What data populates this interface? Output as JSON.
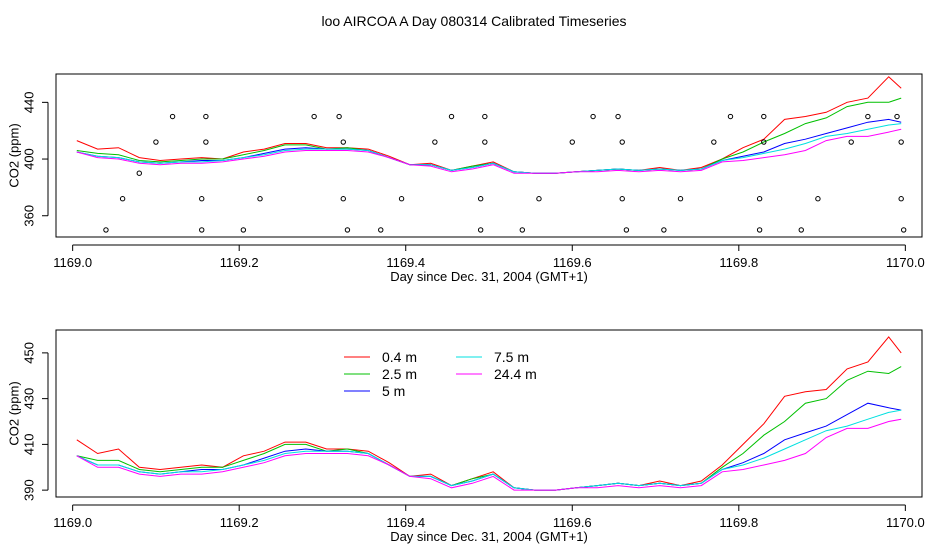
{
  "figure": {
    "title": "loo AIRCOA A  Day 080314  Calibrated Timeseries"
  },
  "colors": {
    "0.4 m": "#ff0000",
    "2.5 m": "#00c000",
    "5 m": "#0000ff",
    "7.5 m": "#00e0e0",
    "24.4 m": "#ff00ff",
    "markers": "#000000"
  },
  "chart_data": [
    {
      "type": "line",
      "xlabel": "Day since Dec. 31, 2004 (GMT+1)",
      "ylabel": "CO2 (ppm)",
      "xlim": [
        1168.98,
        1170.02
      ],
      "ylim": [
        345,
        460
      ],
      "xticks": [
        1169.0,
        1169.2,
        1169.4,
        1169.6,
        1169.8,
        1170.0
      ],
      "xtick_labels": [
        "1169.0",
        "1169.2",
        "1169.4",
        "1169.6",
        "1169.8",
        "1170.0"
      ],
      "yticks": [
        360,
        400,
        440
      ],
      "ytick_labels": [
        "360",
        "400",
        "440"
      ],
      "x": [
        1169.005,
        1169.03,
        1169.055,
        1169.08,
        1169.105,
        1169.13,
        1169.155,
        1169.18,
        1169.205,
        1169.23,
        1169.255,
        1169.28,
        1169.305,
        1169.33,
        1169.355,
        1169.38,
        1169.405,
        1169.43,
        1169.455,
        1169.48,
        1169.505,
        1169.53,
        1169.555,
        1169.58,
        1169.605,
        1169.63,
        1169.655,
        1169.68,
        1169.705,
        1169.73,
        1169.755,
        1169.78,
        1169.805,
        1169.83,
        1169.855,
        1169.88,
        1169.905,
        1169.93,
        1169.955,
        1169.98,
        1169.995
      ],
      "series": [
        {
          "name": "0.4 m",
          "values": [
            413,
            407,
            408,
            401,
            399,
            400,
            401,
            400,
            405,
            407,
            411,
            411,
            408,
            408,
            407,
            402,
            396,
            397,
            392,
            395,
            398,
            391,
            390,
            390,
            391,
            392,
            393,
            392,
            394,
            392,
            394,
            400,
            408,
            414,
            428,
            430,
            433,
            440,
            443,
            458,
            450
          ]
        },
        {
          "name": "2.5 m",
          "values": [
            406,
            404,
            403,
            399,
            398,
            399,
            400,
            400,
            403,
            406,
            410,
            410,
            407,
            408,
            406,
            401,
            396,
            396,
            392,
            395,
            397,
            391,
            390,
            390,
            391,
            392,
            393,
            392,
            393,
            392,
            393,
            400,
            405,
            412,
            418,
            425,
            429,
            437,
            440,
            440,
            443
          ]
        },
        {
          "name": "5 m",
          "values": [
            405,
            402,
            401,
            398,
            397,
            398,
            399,
            399,
            401,
            404,
            407,
            408,
            407,
            407,
            406,
            401,
            396,
            396,
            392,
            394,
            397,
            391,
            390,
            390,
            391,
            392,
            393,
            392,
            393,
            392,
            393,
            399,
            402,
            405,
            411,
            414,
            418,
            422,
            426,
            428,
            426
          ]
        },
        {
          "name": "7.5 m",
          "values": [
            405,
            402,
            401,
            398,
            397,
            398,
            398,
            399,
            401,
            403,
            406,
            407,
            407,
            407,
            406,
            401,
            396,
            396,
            392,
            394,
            397,
            391,
            390,
            390,
            391,
            392,
            393,
            392,
            393,
            392,
            393,
            399,
            401,
            404,
            407,
            411,
            416,
            418,
            421,
            424,
            425
          ]
        },
        {
          "name": "24.4 m",
          "values": [
            405,
            401,
            400,
            397,
            396,
            397,
            397,
            398,
            400,
            402,
            405,
            406,
            406,
            406,
            405,
            401,
            396,
            395,
            391,
            393,
            396,
            390,
            390,
            390,
            391,
            391,
            392,
            391,
            392,
            391,
            392,
            398,
            399,
            401,
            403,
            406,
            413,
            416,
            416,
            419,
            421
          ]
        },
        {
          "name": "",
          "mode": "markers",
          "x": [
            1169.04,
            1169.06,
            1169.08,
            1169.1,
            1169.12,
            1169.155,
            1169.155,
            1169.16,
            1169.16,
            1169.205,
            1169.225,
            1169.29,
            1169.32,
            1169.325,
            1169.325,
            1169.33,
            1169.37,
            1169.395,
            1169.435,
            1169.455,
            1169.49,
            1169.49,
            1169.495,
            1169.495,
            1169.54,
            1169.56,
            1169.6,
            1169.625,
            1169.655,
            1169.66,
            1169.66,
            1169.665,
            1169.71,
            1169.73,
            1169.77,
            1169.79,
            1169.825,
            1169.825,
            1169.83,
            1169.83,
            1169.875,
            1169.895,
            1169.935,
            1169.955,
            1169.99,
            1169.995,
            1169.995,
            1169.998
          ],
          "values": [
            350,
            372,
            390,
            412,
            430,
            350,
            372,
            412,
            430,
            350,
            372,
            430,
            430,
            412,
            372,
            350,
            350,
            372,
            412,
            430,
            350,
            372,
            412,
            430,
            350,
            372,
            412,
            430,
            430,
            412,
            372,
            350,
            350,
            372,
            412,
            430,
            350,
            372,
            412,
            430,
            350,
            372,
            412,
            430,
            430,
            412,
            372,
            350
          ]
        }
      ]
    },
    {
      "type": "line",
      "xlabel": "Day since Dec. 31, 2004 (GMT+1)",
      "ylabel": "CO2 (ppm)",
      "xlim": [
        1168.98,
        1170.02
      ],
      "ylim": [
        387,
        460
      ],
      "xticks": [
        1169.0,
        1169.2,
        1169.4,
        1169.6,
        1169.8,
        1170.0
      ],
      "xtick_labels": [
        "1169.0",
        "1169.2",
        "1169.4",
        "1169.6",
        "1169.8",
        "1170.0"
      ],
      "yticks": [
        390,
        410,
        430,
        450
      ],
      "ytick_labels": [
        "390",
        "410",
        "430",
        "450"
      ],
      "legend": {
        "placement": "top-left",
        "entries": [
          "0.4 m",
          "2.5 m",
          "5 m",
          "7.5 m",
          "24.4 m"
        ]
      },
      "x": [
        1169.005,
        1169.03,
        1169.055,
        1169.08,
        1169.105,
        1169.13,
        1169.155,
        1169.18,
        1169.205,
        1169.23,
        1169.255,
        1169.28,
        1169.305,
        1169.33,
        1169.355,
        1169.38,
        1169.405,
        1169.43,
        1169.455,
        1169.48,
        1169.505,
        1169.53,
        1169.555,
        1169.58,
        1169.605,
        1169.63,
        1169.655,
        1169.68,
        1169.705,
        1169.73,
        1169.755,
        1169.78,
        1169.805,
        1169.83,
        1169.855,
        1169.88,
        1169.905,
        1169.93,
        1169.955,
        1169.98,
        1169.995
      ],
      "series": [
        {
          "name": "0.4 m",
          "values": [
            412,
            406,
            408,
            400,
            399,
            400,
            401,
            400,
            405,
            407,
            411,
            411,
            408,
            408,
            407,
            402,
            396,
            397,
            392,
            395,
            398,
            391,
            390,
            390,
            391,
            392,
            393,
            392,
            394,
            392,
            394,
            401,
            410,
            419,
            431,
            433,
            434,
            443,
            446,
            457,
            450
          ]
        },
        {
          "name": "2.5 m",
          "values": [
            405,
            403,
            403,
            399,
            398,
            399,
            400,
            400,
            403,
            406,
            410,
            410,
            407,
            408,
            406,
            401,
            396,
            396,
            392,
            395,
            397,
            391,
            390,
            390,
            391,
            392,
            393,
            392,
            393,
            392,
            393,
            400,
            406,
            414,
            420,
            428,
            430,
            438,
            442,
            441,
            444
          ]
        },
        {
          "name": "5 m",
          "values": [
            405,
            401,
            401,
            398,
            397,
            398,
            399,
            399,
            401,
            404,
            407,
            408,
            407,
            407,
            406,
            401,
            396,
            396,
            392,
            394,
            397,
            391,
            390,
            390,
            391,
            392,
            393,
            392,
            393,
            392,
            393,
            399,
            402,
            406,
            412,
            415,
            418,
            423,
            428,
            426,
            425
          ]
        },
        {
          "name": "7.5 m",
          "values": [
            405,
            401,
            401,
            398,
            397,
            398,
            398,
            399,
            401,
            403,
            406,
            407,
            407,
            407,
            406,
            401,
            396,
            396,
            392,
            394,
            397,
            391,
            390,
            390,
            391,
            392,
            393,
            392,
            393,
            392,
            393,
            399,
            401,
            404,
            408,
            412,
            416,
            418,
            421,
            424,
            425
          ]
        },
        {
          "name": "24.4 m",
          "values": [
            405,
            400,
            400,
            397,
            396,
            397,
            397,
            398,
            400,
            402,
            405,
            406,
            406,
            406,
            405,
            401,
            396,
            395,
            391,
            393,
            396,
            390,
            390,
            390,
            391,
            391,
            392,
            391,
            392,
            391,
            392,
            398,
            399,
            401,
            403,
            406,
            413,
            417,
            417,
            420,
            421
          ]
        }
      ]
    }
  ]
}
